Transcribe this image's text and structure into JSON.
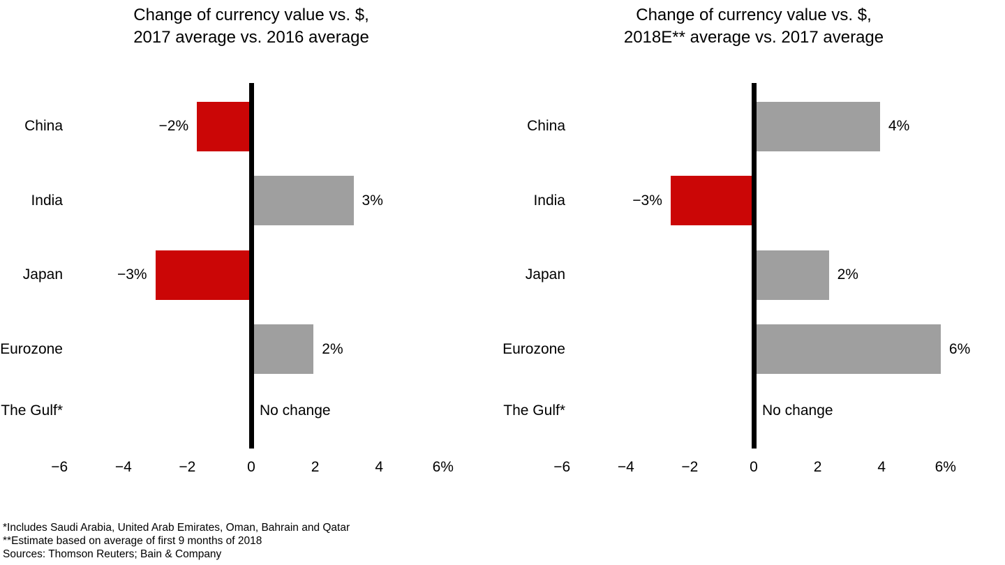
{
  "page": {
    "background": "#ffffff"
  },
  "colors": {
    "positive_bar": "#9f9f9f",
    "negative_bar": "#cb0606",
    "zero_line": "#000000",
    "text": "#000000"
  },
  "chart_data": [
    {
      "type": "bar",
      "orientation": "horizontal",
      "title": "Change of currency value vs. $, 2017 average vs. 2016 average",
      "title_lines": [
        "Change of currency value vs. $,",
        "2017 average vs. 2016 average"
      ],
      "categories": [
        "China",
        "India",
        "Japan",
        "Eurozone",
        "The Gulf*"
      ],
      "values": [
        -2,
        3,
        -3,
        2,
        0
      ],
      "value_labels": [
        "−2%",
        "3%",
        "−3%",
        "2%",
        "No change"
      ],
      "drawn_values": [
        -1.7,
        3.2,
        -3.0,
        1.95,
        0
      ],
      "x_axis": {
        "ticks": [
          -6,
          -4,
          -2,
          0,
          2,
          4,
          6
        ],
        "tick_labels": [
          "−6",
          "−4",
          "−2",
          "0",
          "2",
          "4",
          "6%"
        ],
        "range": [
          -6,
          6
        ]
      },
      "grid": false,
      "legend": false
    },
    {
      "type": "bar",
      "orientation": "horizontal",
      "title": "Change of currency value vs. $, 2018E** average vs. 2017 average",
      "title_lines": [
        "Change of currency value vs. $,",
        "2018E** average vs. 2017 average"
      ],
      "categories": [
        "China",
        "India",
        "Japan",
        "Eurozone",
        "The Gulf*"
      ],
      "values": [
        4,
        -3,
        2,
        6,
        0
      ],
      "value_labels": [
        "4%",
        "−3%",
        "2%",
        "6%",
        "No change"
      ],
      "drawn_values": [
        3.95,
        -2.6,
        2.35,
        5.85,
        0
      ],
      "x_axis": {
        "ticks": [
          -6,
          -4,
          -2,
          0,
          2,
          4,
          6
        ],
        "tick_labels": [
          "−6",
          "−4",
          "−2",
          "0",
          "2",
          "4",
          "6%"
        ],
        "range": [
          -6,
          6
        ]
      },
      "grid": false,
      "legend": false
    }
  ],
  "footnotes": [
    "*Includes Saudi Arabia, United Arab Emirates, Oman, Bahrain and Qatar",
    "**Estimate based on average of first 9 months of 2018",
    "Sources: Thomson Reuters; Bain & Company"
  ]
}
